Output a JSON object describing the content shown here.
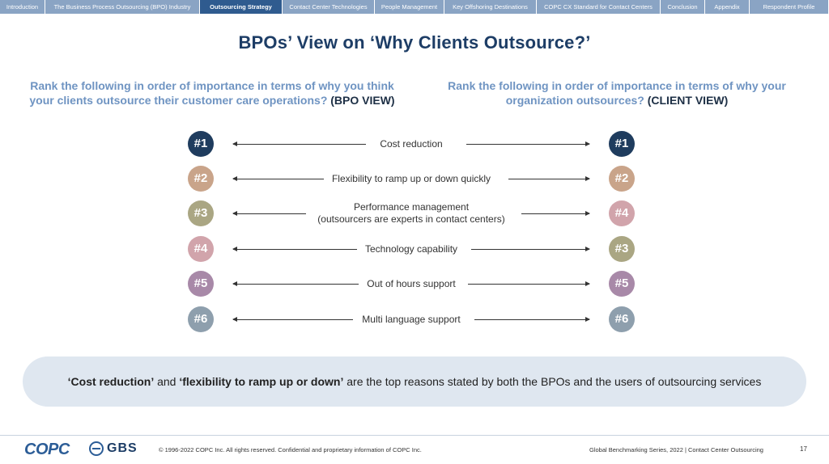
{
  "nav": {
    "tabs": [
      {
        "label": "Introduction",
        "width": 56
      },
      {
        "label": "The Business Process Outsourcing (BPO) Industry",
        "width": 191
      },
      {
        "label": "Outsourcing Strategy",
        "width": 102,
        "active": true
      },
      {
        "label": "Contact Center Technologies",
        "width": 114
      },
      {
        "label": "People Management",
        "width": 86
      },
      {
        "label": "Key Offshoring Destinations",
        "width": 114
      },
      {
        "label": "COPC CX Standard for Contact Centers",
        "width": 153
      },
      {
        "label": "Conclusion",
        "width": 55
      },
      {
        "label": "Appendix",
        "width": 55
      },
      {
        "label": "Respondent Profile",
        "width": 98
      }
    ]
  },
  "title": "BPOs’ View on ‘Why Clients Outsource?’",
  "question_left": {
    "text": "Rank the following in order of importance in terms of why you think your clients outsource their customer care operations? ",
    "view": "(BPO VIEW)"
  },
  "question_right": {
    "text": "Rank the following in order of importance in terms of why your organization outsources? ",
    "view": "(CLIENT VIEW)"
  },
  "rank_colors": {
    "1": "#1f3c5e",
    "2": "#c9a48a",
    "3": "#aaa683",
    "4": "#d1a4ab",
    "5": "#a889a8",
    "6": "#8e9fad"
  },
  "rows": [
    {
      "reason": "Cost reduction",
      "bpo_rank": "#1",
      "bpo_level": 1,
      "client_rank": "#1",
      "client_level": 1
    },
    {
      "reason": "Flexibility to ramp up or down quickly",
      "bpo_rank": "#2",
      "bpo_level": 2,
      "client_rank": "#2",
      "client_level": 2
    },
    {
      "reason": "Performance management\n(outsourcers are experts in contact centers)",
      "bpo_rank": "#3",
      "bpo_level": 3,
      "client_rank": "#4",
      "client_level": 4
    },
    {
      "reason": "Technology capability",
      "bpo_rank": "#4",
      "bpo_level": 4,
      "client_rank": "#3",
      "client_level": 3
    },
    {
      "reason": "Out of hours support",
      "bpo_rank": "#5",
      "bpo_level": 5,
      "client_rank": "#5",
      "client_level": 5
    },
    {
      "reason": "Multi language support",
      "bpo_rank": "#6",
      "bpo_level": 6,
      "client_rank": "#6",
      "client_level": 6
    }
  ],
  "summary": {
    "part1": "‘Cost reduction’",
    "part2": " and ",
    "part3": "‘flexibility to ramp up or down’",
    "part4": " are the top reasons stated by both the BPOs and the users of outsourcing services"
  },
  "footer": {
    "logo_copc": "COPC",
    "logo_gbs": "GBS",
    "copyright": "© 1996-2022 COPC Inc. All rights reserved. Confidential and proprietary information of COPC Inc.",
    "series": "Global Benchmarking Series, 2022  |  Contact Center Outsourcing",
    "page": "17"
  }
}
